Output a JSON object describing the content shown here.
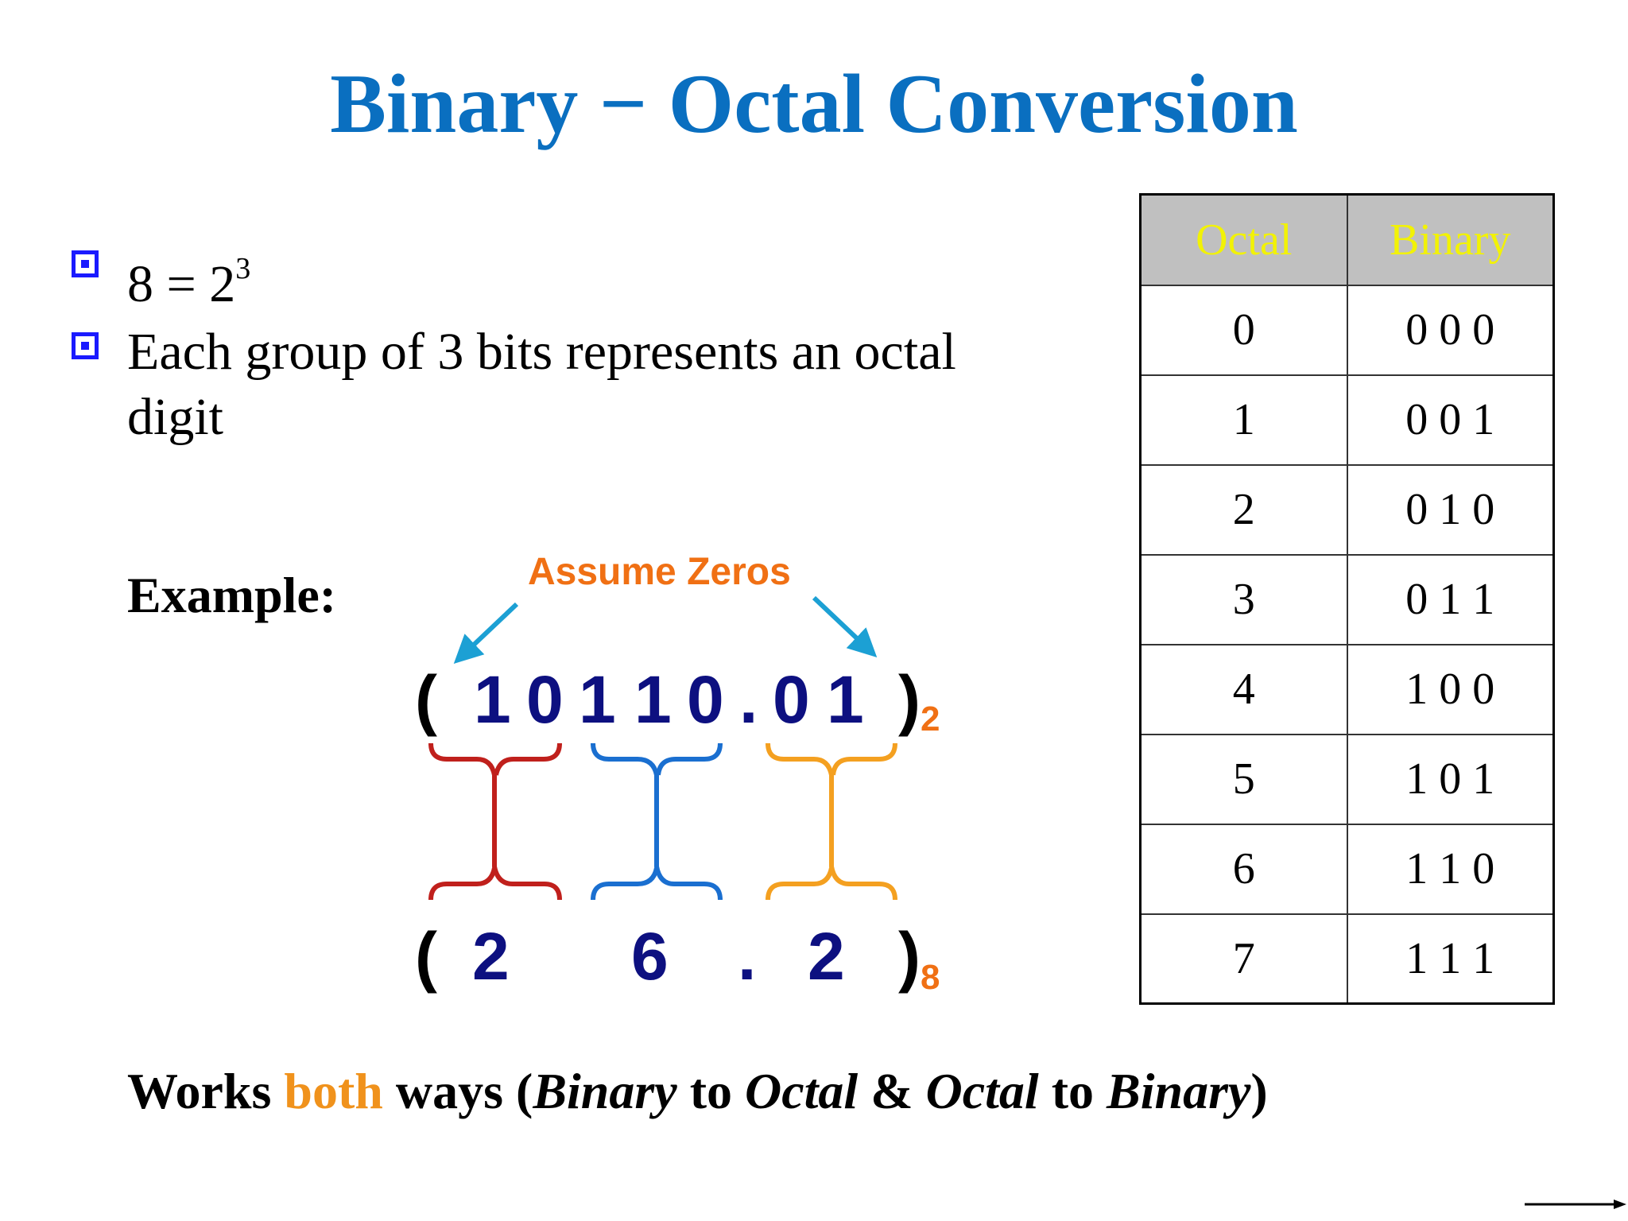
{
  "title": "Binary − Octal Conversion",
  "bullets": [
    {
      "base": "8 = 2",
      "sup": "3"
    },
    {
      "line1": "Each group of 3 bits represents an octal",
      "line2": "digit"
    }
  ],
  "example_label": "Example:",
  "annotation": "Assume Zeros",
  "binary": {
    "open": "(",
    "digits": [
      "1",
      "0",
      "1",
      "1",
      "0",
      ".",
      "0",
      "1"
    ],
    "close": ")",
    "base": "2"
  },
  "octal": {
    "open": "(",
    "digits": [
      "2",
      "6",
      ".",
      "2"
    ],
    "close": ")",
    "base": "8"
  },
  "bottom": {
    "p1": "Works ",
    "hl": "both",
    "p2": " ways (",
    "i1": "Binary",
    "p3": " to ",
    "i2": "Octal",
    "p4": " & ",
    "i3": "Octal",
    "p5": " to ",
    "i4": "Binary",
    "p6": ")"
  },
  "table": {
    "headers": [
      "Octal",
      "Binary"
    ],
    "rows": [
      [
        "0",
        "0 0 0"
      ],
      [
        "1",
        "0 0 1"
      ],
      [
        "2",
        "0 1 0"
      ],
      [
        "3",
        "0 1 1"
      ],
      [
        "4",
        "1 0 0"
      ],
      [
        "5",
        "1 0 1"
      ],
      [
        "6",
        "1 1 0"
      ],
      [
        "7",
        "1 1 1"
      ]
    ]
  },
  "colors": {
    "title": "#0a6fc0",
    "bullet": "#1a1aff",
    "digits": "#0d1080",
    "accent_orange": "#f07014",
    "both_highlight": "#f0921c",
    "header_bg": "#c0c0c0",
    "header_text": "#f2f205",
    "arrow": "#1ca0d4",
    "brace_red": "#c0201c",
    "brace_blue": "#1a6fd0",
    "brace_orange": "#f4a020"
  }
}
